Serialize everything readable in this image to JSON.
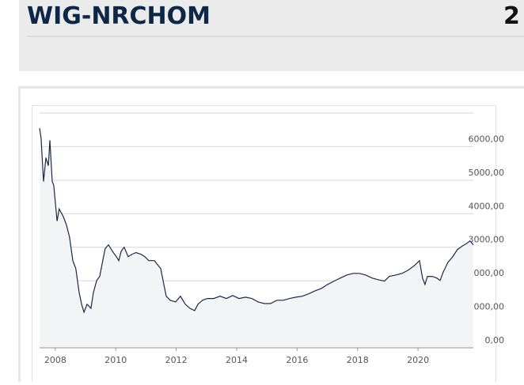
{
  "header": {
    "title": "WIG-NRCHOM",
    "value": "2"
  },
  "chart_data": {
    "type": "line",
    "x": [
      2007.48,
      2007.53,
      2007.61,
      2007.69,
      2007.77,
      2007.82,
      2007.9,
      2007.95,
      2008.06,
      2008.13,
      2008.27,
      2008.37,
      2008.47,
      2008.58,
      2008.68,
      2008.79,
      2008.87,
      2008.95,
      2009.05,
      2009.18,
      2009.26,
      2009.37,
      2009.47,
      2009.57,
      2009.65,
      2009.76,
      2009.89,
      2010.02,
      2010.1,
      2010.18,
      2010.28,
      2010.41,
      2010.54,
      2010.67,
      2010.83,
      2010.96,
      2011.09,
      2011.28,
      2011.49,
      2011.59,
      2011.67,
      2011.8,
      2011.98,
      2012.14,
      2012.3,
      2012.45,
      2012.61,
      2012.72,
      2012.87,
      2013.03,
      2013.24,
      2013.45,
      2013.66,
      2013.87,
      2014.08,
      2014.29,
      2014.5,
      2014.71,
      2014.92,
      2015.12,
      2015.33,
      2015.54,
      2015.75,
      2015.96,
      2016.17,
      2016.38,
      2016.59,
      2016.8,
      2017.01,
      2017.22,
      2017.43,
      2017.64,
      2017.85,
      2018.06,
      2018.27,
      2018.48,
      2018.69,
      2018.89,
      2019.05,
      2019.26,
      2019.47,
      2019.68,
      2019.89,
      2020.05,
      2020.15,
      2020.23,
      2020.31,
      2020.47,
      2020.62,
      2020.73,
      2020.83,
      2020.99,
      2021.15,
      2021.3,
      2021.46,
      2021.62,
      2021.72,
      2021.83
    ],
    "values": [
      6550,
      6260,
      4960,
      5670,
      5430,
      6190,
      4960,
      4850,
      3780,
      4140,
      3900,
      3660,
      3310,
      2600,
      2360,
      1650,
      1300,
      1060,
      1300,
      1180,
      1650,
      2010,
      2130,
      2600,
      2960,
      3070,
      2880,
      2720,
      2600,
      2880,
      3000,
      2720,
      2790,
      2840,
      2790,
      2720,
      2600,
      2600,
      2360,
      1890,
      1540,
      1420,
      1370,
      1540,
      1300,
      1180,
      1110,
      1300,
      1420,
      1470,
      1470,
      1540,
      1470,
      1560,
      1470,
      1510,
      1470,
      1370,
      1320,
      1320,
      1420,
      1420,
      1470,
      1510,
      1540,
      1610,
      1700,
      1770,
      1890,
      1990,
      2080,
      2170,
      2220,
      2220,
      2170,
      2080,
      2030,
      1990,
      2130,
      2170,
      2220,
      2320,
      2460,
      2600,
      2080,
      1890,
      2130,
      2130,
      2080,
      2010,
      2250,
      2550,
      2720,
      2930,
      3030,
      3120,
      3190,
      3070
    ],
    "xlim": [
      2007.48,
      2021.83
    ],
    "xticks": [
      2008,
      2010,
      2012,
      2014,
      2016,
      2018,
      2020
    ],
    "ylim": [
      0,
      7000
    ],
    "yticks": [
      {
        "value": 0,
        "label": "0,00"
      },
      {
        "value": 1000,
        "label": "1000,00"
      },
      {
        "value": 2000,
        "label": "2000,00"
      },
      {
        "value": 3000,
        "label": "3000,00"
      },
      {
        "value": 4000,
        "label": "4000,00"
      },
      {
        "value": 5000,
        "label": "5000,00"
      },
      {
        "value": 6000,
        "label": "6000,00"
      }
    ],
    "color": "#1b2a44",
    "area_color": "#f3f4f6",
    "grid": true
  }
}
